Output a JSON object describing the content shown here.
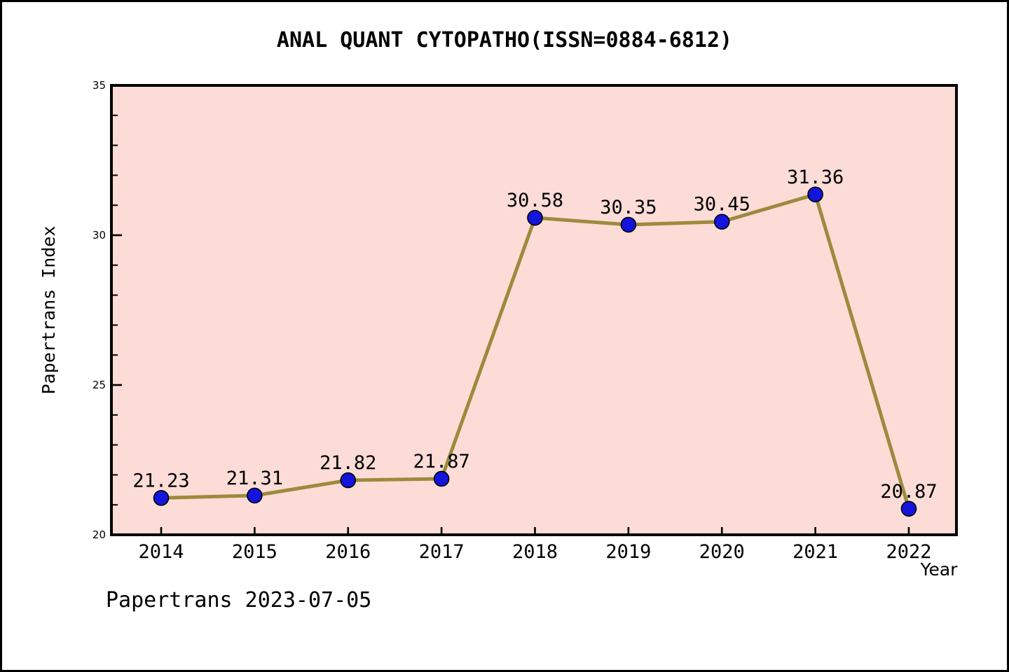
{
  "title": "ANAL QUANT CYTOPATHO(ISSN=0884-6812)",
  "footer": "Papertrans 2023-07-05",
  "chart_data": {
    "type": "line",
    "x": [
      2014,
      2015,
      2016,
      2017,
      2018,
      2019,
      2020,
      2021,
      2022
    ],
    "series": [
      {
        "name": "Papertrans Index",
        "values": [
          21.23,
          21.31,
          21.82,
          21.87,
          30.58,
          30.35,
          30.45,
          31.36,
          20.87
        ]
      }
    ],
    "point_labels": [
      "21.23",
      "21.31",
      "21.82",
      "21.87",
      "30.58",
      "30.35",
      "30.45",
      "31.36",
      "20.87"
    ],
    "xlabel": "Year",
    "ylabel": "Papertrans Index",
    "ylim": [
      20,
      35
    ],
    "yticks_major": [
      20,
      25,
      30,
      35
    ],
    "ytick_minor_step": 1,
    "grid": false,
    "legend": "none",
    "colors": {
      "plot_bg": "#FBDCD7",
      "frame_bg": "#FFFFFF",
      "line": "#9B8B3D",
      "marker": "#1414DC",
      "marker_edge": "#000000",
      "axis": "#000000",
      "text": "#000000"
    }
  }
}
